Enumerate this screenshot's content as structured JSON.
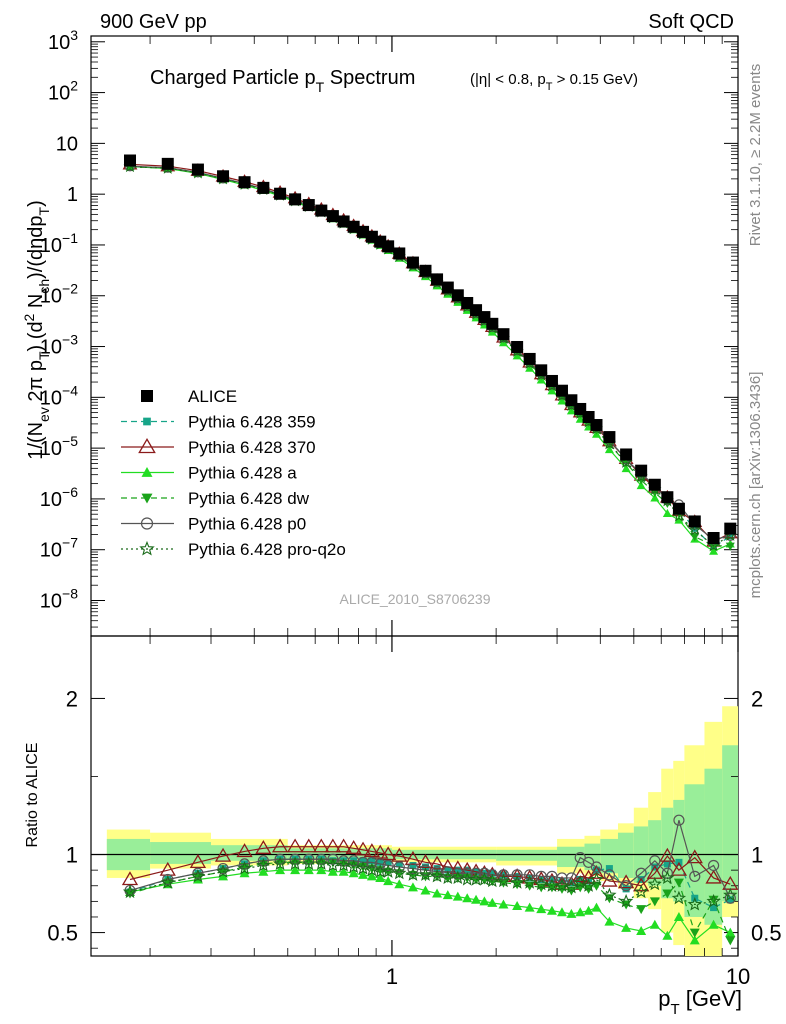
{
  "header": {
    "left": "900 GeV pp",
    "right": "Soft QCD"
  },
  "side_labels": {
    "rivet": "Rivet 3.1.10, ≥ 2.2M events",
    "mcplots": "mcplots.cern.ch [arXiv:1306.3436]"
  },
  "watermark": "ALICE_2010_S8706239",
  "chart_data": [
    {
      "type": "scatter",
      "title": {
        "main": "Charged Particle p",
        "main_sub": "T",
        "main_tail": " Spectrum",
        "cuts": "(|η| < 0.8, p",
        "cuts_sub": "T",
        "cuts_tail": " > 0.15 GeV)"
      },
      "ylabel": "1/(N_ev 2π p_T) (d² N_ch)/(dηdp_T)",
      "x_scale": "log",
      "y_scale": "log",
      "xlim": [
        0.135,
        10.0
      ],
      "ylim": [
        2e-09,
        1300.0
      ],
      "y_ticks": [
        {
          "v": 1000.0,
          "base": "10",
          "exp": "3"
        },
        {
          "v": 100.0,
          "base": "10",
          "exp": "2"
        },
        {
          "v": 10,
          "base": "10",
          "exp": ""
        },
        {
          "v": 1,
          "base": "1",
          "exp": ""
        },
        {
          "v": 0.1,
          "base": "10",
          "exp": "−1"
        },
        {
          "v": 0.01,
          "base": "10",
          "exp": "−2"
        },
        {
          "v": 0.001,
          "base": "10",
          "exp": "−3"
        },
        {
          "v": 0.0001,
          "base": "10",
          "exp": "−4"
        },
        {
          "v": 1e-05,
          "base": "10",
          "exp": "−5"
        },
        {
          "v": 1e-06,
          "base": "10",
          "exp": "−6"
        },
        {
          "v": 1e-07,
          "base": "10",
          "exp": "−7"
        },
        {
          "v": 1e-08,
          "base": "10",
          "exp": "−8"
        }
      ],
      "x": [
        0.175,
        0.225,
        0.275,
        0.325,
        0.375,
        0.425,
        0.475,
        0.525,
        0.575,
        0.625,
        0.675,
        0.725,
        0.775,
        0.825,
        0.875,
        0.925,
        0.975,
        1.05,
        1.15,
        1.25,
        1.35,
        1.45,
        1.55,
        1.65,
        1.75,
        1.85,
        1.95,
        2.1,
        2.3,
        2.5,
        2.7,
        2.9,
        3.1,
        3.3,
        3.5,
        3.7,
        3.9,
        4.25,
        4.75,
        5.25,
        5.75,
        6.25,
        6.75,
        7.5,
        8.5,
        9.5
      ],
      "legend_position": "middle-left",
      "series": [
        {
          "name": "ALICE",
          "color": "#000000",
          "marker": "square",
          "dash": "none",
          "values": [
            4.6,
            3.95,
            3.05,
            2.25,
            1.72,
            1.33,
            1.02,
            0.79,
            0.61,
            0.475,
            0.37,
            0.29,
            0.228,
            0.181,
            0.145,
            0.116,
            0.094,
            0.068,
            0.045,
            0.031,
            0.021,
            0.0145,
            0.0102,
            0.0072,
            0.0052,
            0.0038,
            0.0028,
            0.00175,
            0.00098,
            0.00057,
            0.00034,
            0.00021,
            0.000135,
            8.75e-05,
            5.9e-05,
            4.1e-05,
            2.85e-05,
            1.65e-05,
            7.5e-06,
            3.6e-06,
            1.9e-06,
            1.08e-06,
            6.4e-07,
            3.6e-07,
            1.7e-07,
            2.6e-07
          ]
        },
        {
          "name": "Pythia 6.428 359",
          "color": "#17a589",
          "marker": "small-square",
          "dash": "6,4",
          "ratio": [
            0.76,
            0.84,
            0.88,
            0.91,
            0.94,
            0.96,
            0.97,
            0.97,
            0.97,
            0.97,
            0.96,
            0.96,
            0.96,
            0.96,
            0.96,
            0.95,
            0.95,
            0.94,
            0.93,
            0.92,
            0.91,
            0.9,
            0.9,
            0.9,
            0.89,
            0.88,
            0.88,
            0.87,
            0.86,
            0.85,
            0.84,
            0.84,
            0.83,
            0.82,
            0.84,
            0.83,
            0.9,
            0.91,
            0.78,
            0.84,
            0.92,
            0.94,
            0.95,
            0.72,
            0.66,
            0.71
          ]
        },
        {
          "name": "Pythia 6.428 370",
          "color": "#8b1a1a",
          "marker": "open-triangle",
          "dash": "none",
          "ratio": [
            0.84,
            0.9,
            0.95,
            0.99,
            1.02,
            1.04,
            1.05,
            1.05,
            1.05,
            1.05,
            1.05,
            1.05,
            1.04,
            1.03,
            1.02,
            1.01,
            1.0,
            0.99,
            0.97,
            0.95,
            0.94,
            0.92,
            0.91,
            0.9,
            0.89,
            0.88,
            0.87,
            0.86,
            0.86,
            0.85,
            0.84,
            0.83,
            0.81,
            0.81,
            0.86,
            0.85,
            0.88,
            0.83,
            0.82,
            0.8,
            0.88,
            0.99,
            0.9,
            0.98,
            0.85,
            0.81
          ]
        },
        {
          "name": "Pythia 6.428 a",
          "color": "#22dd22",
          "marker": "filled-triangle",
          "dash": "none",
          "ratio": [
            0.76,
            0.81,
            0.84,
            0.86,
            0.88,
            0.89,
            0.9,
            0.9,
            0.9,
            0.9,
            0.89,
            0.89,
            0.88,
            0.87,
            0.86,
            0.85,
            0.83,
            0.81,
            0.79,
            0.77,
            0.75,
            0.74,
            0.73,
            0.72,
            0.71,
            0.7,
            0.69,
            0.68,
            0.67,
            0.66,
            0.65,
            0.64,
            0.63,
            0.62,
            0.63,
            0.64,
            0.66,
            0.57,
            0.53,
            0.51,
            0.55,
            0.48,
            0.6,
            0.45,
            0.55,
            0.5
          ]
        },
        {
          "name": "Pythia 6.428 dw",
          "color": "#1aa31a",
          "marker": "down-triangle",
          "dash": "6,4",
          "ratio": [
            0.75,
            0.82,
            0.86,
            0.89,
            0.92,
            0.94,
            0.95,
            0.95,
            0.95,
            0.95,
            0.95,
            0.94,
            0.93,
            0.92,
            0.91,
            0.9,
            0.89,
            0.88,
            0.87,
            0.86,
            0.86,
            0.85,
            0.85,
            0.85,
            0.84,
            0.84,
            0.83,
            0.82,
            0.81,
            0.8,
            0.79,
            0.79,
            0.78,
            0.77,
            0.79,
            0.78,
            0.8,
            0.72,
            0.68,
            0.65,
            0.7,
            0.75,
            0.82,
            0.5,
            0.71,
            0.45
          ]
        },
        {
          "name": "Pythia 6.428 p0",
          "color": "#555555",
          "marker": "open-circle",
          "dash": "none",
          "ratio": [
            0.77,
            0.84,
            0.88,
            0.91,
            0.94,
            0.96,
            0.97,
            0.97,
            0.97,
            0.97,
            0.97,
            0.96,
            0.96,
            0.95,
            0.95,
            0.94,
            0.93,
            0.92,
            0.91,
            0.9,
            0.89,
            0.89,
            0.88,
            0.88,
            0.88,
            0.88,
            0.87,
            0.87,
            0.87,
            0.87,
            0.86,
            0.86,
            0.85,
            0.85,
            0.98,
            0.95,
            0.92,
            0.87,
            0.8,
            0.88,
            0.96,
            0.88,
            1.22,
            0.86,
            0.93,
            0.72
          ]
        },
        {
          "name": "Pythia 6.428 pro-q2o",
          "color": "#1a6b1a",
          "marker": "open-star",
          "dash": "2,3",
          "ratio": [
            0.76,
            0.82,
            0.86,
            0.89,
            0.91,
            0.93,
            0.94,
            0.94,
            0.94,
            0.94,
            0.93,
            0.93,
            0.92,
            0.91,
            0.9,
            0.89,
            0.89,
            0.88,
            0.87,
            0.87,
            0.86,
            0.85,
            0.85,
            0.84,
            0.84,
            0.84,
            0.83,
            0.83,
            0.82,
            0.82,
            0.81,
            0.8,
            0.8,
            0.79,
            0.82,
            0.8,
            0.84,
            0.74,
            0.7,
            0.76,
            0.81,
            0.85,
            0.72,
            0.68,
            0.7,
            0.74
          ]
        }
      ]
    },
    {
      "type": "line",
      "ylabel": "Ratio to ALICE",
      "x_scale": "log",
      "xlim": [
        0.135,
        10.0
      ],
      "ylim": [
        0.35,
        2.4
      ],
      "y_ticks": [
        {
          "v": 0.5,
          "label": "0.5"
        },
        {
          "v": 1,
          "label": "1"
        },
        {
          "v": 2,
          "label": "2"
        }
      ],
      "x_ticks": [
        {
          "v": 1,
          "label": "1"
        },
        {
          "v": 10,
          "label": "10"
        }
      ],
      "xlabel": {
        "main": "p",
        "sub": "T",
        "tail": " [GeV]"
      },
      "band_edges": [
        0.15,
        0.2,
        0.3,
        0.5,
        1.0,
        2.0,
        3.0,
        3.6,
        4.0,
        4.5,
        5.0,
        5.5,
        6.0,
        6.5,
        7.0,
        8.0,
        9.0,
        10.0
      ],
      "band_yellow": [
        [
          0.85,
          1.16
        ],
        [
          0.91,
          1.14
        ],
        [
          0.93,
          1.1
        ],
        [
          0.94,
          1.06
        ],
        [
          0.95,
          1.05
        ],
        [
          0.93,
          1.05
        ],
        [
          0.88,
          1.1
        ],
        [
          0.86,
          1.12
        ],
        [
          0.83,
          1.16
        ],
        [
          0.78,
          1.2
        ],
        [
          0.72,
          1.3
        ],
        [
          0.65,
          1.4
        ],
        [
          0.5,
          1.55
        ],
        [
          0.42,
          1.6
        ],
        [
          0.35,
          1.7
        ],
        [
          0.35,
          1.85
        ],
        [
          0.6,
          1.95
        ]
      ],
      "band_green": [
        [
          0.9,
          1.1
        ],
        [
          0.94,
          1.08
        ],
        [
          0.96,
          1.06
        ],
        [
          0.97,
          1.04
        ],
        [
          0.97,
          1.03
        ],
        [
          0.96,
          1.03
        ],
        [
          0.92,
          1.05
        ],
        [
          0.9,
          1.07
        ],
        [
          0.88,
          1.1
        ],
        [
          0.85,
          1.14
        ],
        [
          0.82,
          1.18
        ],
        [
          0.8,
          1.22
        ],
        [
          0.72,
          1.3
        ],
        [
          0.7,
          1.35
        ],
        [
          0.6,
          1.45
        ],
        [
          0.55,
          1.55
        ],
        [
          0.7,
          1.7
        ]
      ]
    }
  ]
}
